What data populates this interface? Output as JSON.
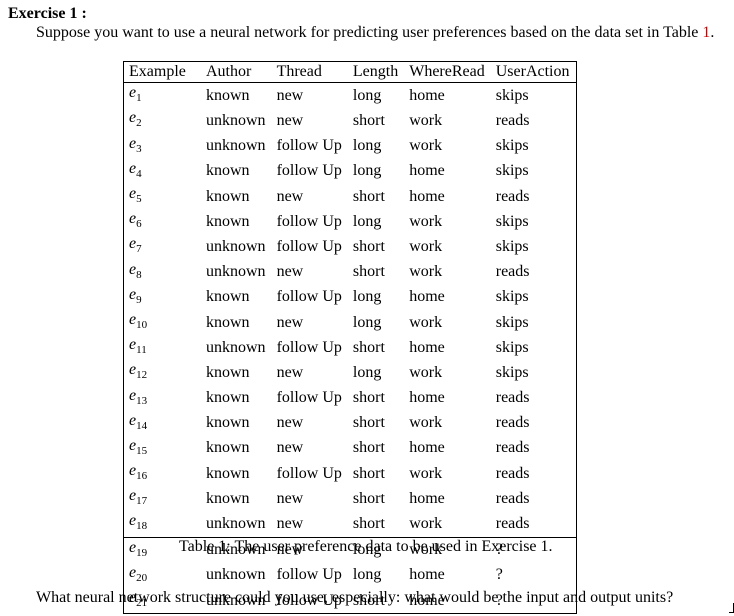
{
  "heading": "Exercise 1 :",
  "intro": {
    "text": "Suppose you want to use a neural network for predicting user preferences based on the data set in Table ",
    "ref": "1",
    "end": "."
  },
  "table": {
    "headers": [
      "Example",
      "Author",
      "Thread",
      "Length",
      "WhereRead",
      "UserAction"
    ],
    "known_rows": [
      {
        "e": "e",
        "n": "1",
        "cells": [
          "known",
          "new",
          "long",
          "home",
          "skips"
        ]
      },
      {
        "e": "e",
        "n": "2",
        "cells": [
          "unknown",
          "new",
          "short",
          "work",
          "reads"
        ]
      },
      {
        "e": "e",
        "n": "3",
        "cells": [
          "unknown",
          "follow Up",
          "long",
          "work",
          "skips"
        ]
      },
      {
        "e": "e",
        "n": "4",
        "cells": [
          "known",
          "follow Up",
          "long",
          "home",
          "skips"
        ]
      },
      {
        "e": "e",
        "n": "5",
        "cells": [
          "known",
          "new",
          "short",
          "home",
          "reads"
        ]
      },
      {
        "e": "e",
        "n": "6",
        "cells": [
          "known",
          "follow Up",
          "long",
          "work",
          "skips"
        ]
      },
      {
        "e": "e",
        "n": "7",
        "cells": [
          "unknown",
          "follow Up",
          "short",
          "work",
          "skips"
        ]
      },
      {
        "e": "e",
        "n": "8",
        "cells": [
          "unknown",
          "new",
          "short",
          "work",
          "reads"
        ]
      },
      {
        "e": "e",
        "n": "9",
        "cells": [
          "known",
          "follow Up",
          "long",
          "home",
          "skips"
        ]
      },
      {
        "e": "e",
        "n": "10",
        "cells": [
          "known",
          "new",
          "long",
          "work",
          "skips"
        ]
      },
      {
        "e": "e",
        "n": "11",
        "cells": [
          "unknown",
          "follow Up",
          "short",
          "home",
          "skips"
        ]
      },
      {
        "e": "e",
        "n": "12",
        "cells": [
          "known",
          "new",
          "long",
          "work",
          "skips"
        ]
      },
      {
        "e": "e",
        "n": "13",
        "cells": [
          "known",
          "follow Up",
          "short",
          "home",
          "reads"
        ]
      },
      {
        "e": "e",
        "n": "14",
        "cells": [
          "known",
          "new",
          "short",
          "work",
          "reads"
        ]
      },
      {
        "e": "e",
        "n": "15",
        "cells": [
          "known",
          "new",
          "short",
          "home",
          "reads"
        ]
      },
      {
        "e": "e",
        "n": "16",
        "cells": [
          "known",
          "follow Up",
          "short",
          "work",
          "reads"
        ]
      },
      {
        "e": "e",
        "n": "17",
        "cells": [
          "known",
          "new",
          "short",
          "home",
          "reads"
        ]
      },
      {
        "e": "e",
        "n": "18",
        "cells": [
          "unknown",
          "new",
          "short",
          "work",
          "reads"
        ]
      }
    ],
    "unknown_rows": [
      {
        "e": "e",
        "n": "19",
        "cells": [
          "unknown",
          "new",
          "long",
          "work",
          "?"
        ]
      },
      {
        "e": "e",
        "n": "20",
        "cells": [
          "unknown",
          "follow Up",
          "long",
          "home",
          "?"
        ]
      },
      {
        "e": "e",
        "n": "21",
        "cells": [
          "unknown",
          "follow Up",
          "short",
          "home",
          "?"
        ]
      }
    ]
  },
  "caption": "Table 1: The user preference data to be used in Exercise 1.",
  "question": "What neural network structure could you use, especially: what would be the input and output units?",
  "colors": {
    "reference": "#d40000"
  }
}
